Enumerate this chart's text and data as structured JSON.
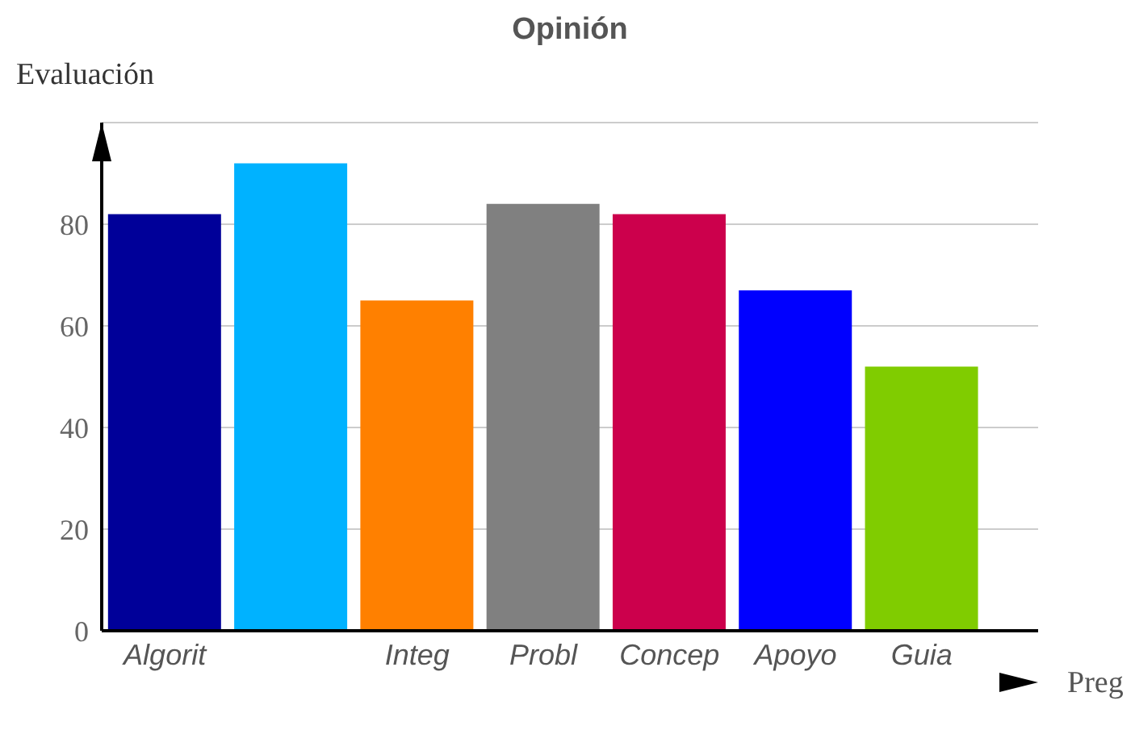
{
  "chart_data": {
    "type": "bar",
    "title": "Opinión",
    "xlabel": "Preg",
    "ylabel": "Evaluación",
    "categories": [
      "Algorit",
      null,
      "Integ",
      "Probl",
      "Concep",
      "Apoyo",
      "Guia"
    ],
    "values": [
      82,
      92,
      65,
      84,
      82,
      67,
      52
    ],
    "colors": [
      "#000099",
      "#00b2ff",
      "#ff8000",
      "#808080",
      "#cc004c",
      "#0000ff",
      "#80cc00"
    ],
    "ylim": [
      0,
      100
    ],
    "yticks": [
      0,
      20,
      40,
      60,
      80,
      {
        "value": 100,
        "label": null
      }
    ],
    "grid": "y"
  }
}
